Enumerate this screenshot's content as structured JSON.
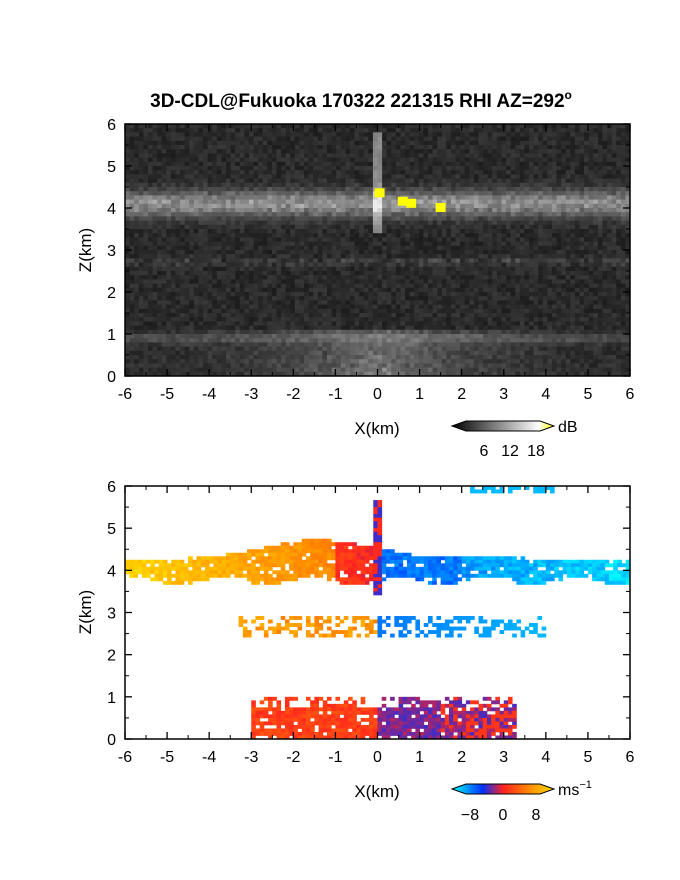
{
  "chart_data": [
    {
      "type": "heatmap",
      "title": "3D-CDL@Fukuoka 170322 221315 RHI AZ=292",
      "title_superscript": "o",
      "xlabel": "X(km)",
      "ylabel": "Z(km)",
      "xlim": [
        -6,
        6
      ],
      "ylim": [
        0,
        6
      ],
      "xticks": [
        "-6",
        "-5",
        "-4",
        "-3",
        "-2",
        "-1",
        "0",
        "1",
        "2",
        "3",
        "4",
        "5",
        "6"
      ],
      "yticks": [
        "0",
        "1",
        "2",
        "3",
        "4",
        "5",
        "6"
      ],
      "colorbar": {
        "unit": "dB",
        "ticks": [
          "6",
          "12",
          "18"
        ],
        "range": [
          0,
          20
        ],
        "colors": [
          "#000000",
          "#ffffff",
          "#ffff00"
        ]
      },
      "background": "#2a2a2a",
      "features": [
        {
          "name": "cloud layer",
          "x": [
            -6,
            6
          ],
          "z": [
            3.6,
            4.6
          ],
          "intensity_db": 10
        },
        {
          "name": "thin layer",
          "x": [
            -6,
            6
          ],
          "z": [
            2.65,
            2.8
          ],
          "intensity_db": 6
        },
        {
          "name": "boundary layer",
          "x": [
            -6,
            6
          ],
          "z": [
            0,
            1.0
          ],
          "intensity_db": 8
        },
        {
          "name": "strong echo",
          "points": [
            [
              0.05,
              4.35
            ],
            [
              0.6,
              4.15
            ],
            [
              0.8,
              4.1
            ],
            [
              1.5,
              4.0
            ]
          ],
          "intensity_db": 20
        }
      ]
    },
    {
      "type": "heatmap",
      "xlabel": "X(km)",
      "ylabel": "Z(km)",
      "xlim": [
        -6,
        6
      ],
      "ylim": [
        0,
        6
      ],
      "xticks": [
        "-6",
        "-5",
        "-4",
        "-3",
        "-2",
        "-1",
        "0",
        "1",
        "2",
        "3",
        "4",
        "5",
        "6"
      ],
      "yticks": [
        "0",
        "1",
        "2",
        "3",
        "4",
        "5",
        "6"
      ],
      "colorbar": {
        "unit": "ms",
        "unit_superscript": "−1",
        "ticks": [
          "−8",
          "0",
          "8"
        ],
        "range": [
          -10,
          10
        ],
        "colors": [
          "#00ffff",
          "#0030ff",
          "#ff2020",
          "#ff8800",
          "#ffdd00"
        ]
      },
      "features": [
        {
          "name": "cloud layer",
          "x": [
            -6,
            6
          ],
          "z": [
            3.6,
            4.8
          ],
          "velocity_left": 7,
          "velocity_right": -8
        },
        {
          "name": "thin layer",
          "x": [
            -3.3,
            4.0
          ],
          "z": [
            2.5,
            2.9
          ],
          "velocity_left": 6,
          "velocity_right": -7
        },
        {
          "name": "boundary layer",
          "x": [
            -3.0,
            3.2
          ],
          "z": [
            0,
            1.0
          ],
          "velocity_left": 2,
          "velocity_right": -2
        },
        {
          "name": "upper fragment",
          "x": [
            2.2,
            4.2
          ],
          "z": [
            5.85,
            6.0
          ],
          "velocity": -8
        }
      ]
    }
  ]
}
